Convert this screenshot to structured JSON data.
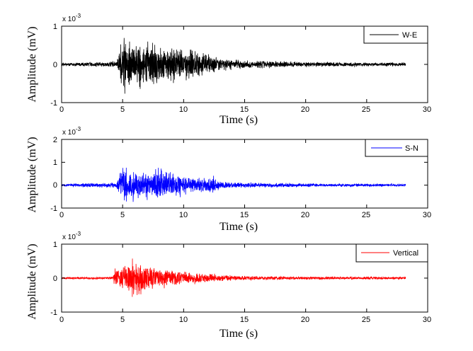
{
  "chart_data": [
    {
      "type": "line",
      "title": "",
      "xlabel": "Time (s)",
      "ylabel": "Amplitude (mV)",
      "y_multiplier": "x 10^-3",
      "xlim": [
        0,
        30
      ],
      "ylim": [
        -1,
        1
      ],
      "xticks": [
        0,
        5,
        10,
        15,
        20,
        25,
        30
      ],
      "yticks": [
        -1,
        0,
        1
      ],
      "legend": {
        "entries": [
          "W-E"
        ],
        "position": "upper right"
      },
      "series": [
        {
          "name": "W-E",
          "color": "#000000",
          "description": "Seismic trace: low noise (~0.05e-3) from 0-4.5 s, strong shaking 4.7-12.5 s with peaks ~+1.0e-3 near 5.2 s and ~-0.9e-3 near 7.2 s, decaying coda to end at ~28 s",
          "envelope": [
            [
              0,
              0.05
            ],
            [
              4.5,
              0.1
            ],
            [
              5,
              0.95
            ],
            [
              6,
              0.7
            ],
            [
              7,
              0.85
            ],
            [
              8,
              0.6
            ],
            [
              9,
              0.6
            ],
            [
              10,
              0.55
            ],
            [
              11,
              0.5
            ],
            [
              12,
              0.4
            ],
            [
              13,
              0.2
            ],
            [
              15,
              0.15
            ],
            [
              20,
              0.08
            ],
            [
              28,
              0.06
            ]
          ]
        }
      ],
      "grid": false
    },
    {
      "type": "line",
      "title": "",
      "xlabel": "Time (s)",
      "ylabel": "Amplitude (mV)",
      "y_multiplier": "x 10^-3",
      "xlim": [
        0,
        30
      ],
      "ylim": [
        -1,
        2
      ],
      "xticks": [
        0,
        5,
        10,
        15,
        20,
        25,
        30
      ],
      "yticks": [
        -1,
        0,
        1,
        2
      ],
      "legend": {
        "entries": [
          "S-N"
        ],
        "position": "upper right"
      },
      "series": [
        {
          "name": "S-N",
          "color": "#0000ff",
          "description": "Seismic trace: low noise from 0-4.5 s, strong shaking 4.6-12.5 s with peak ~+1.1e-3 near 5.2 s, ~-0.9e-3 near 8 s, decaying coda to ~28 s",
          "envelope": [
            [
              0,
              0.07
            ],
            [
              4.5,
              0.15
            ],
            [
              5,
              1.1
            ],
            [
              6,
              0.75
            ],
            [
              7,
              0.7
            ],
            [
              8,
              0.9
            ],
            [
              9,
              0.7
            ],
            [
              10,
              0.6
            ],
            [
              11,
              0.4
            ],
            [
              12.5,
              0.45
            ],
            [
              13,
              0.2
            ],
            [
              15,
              0.15
            ],
            [
              20,
              0.1
            ],
            [
              28,
              0.07
            ]
          ]
        }
      ],
      "grid": false
    },
    {
      "type": "line",
      "title": "",
      "xlabel": "Time (s)",
      "ylabel": "Amplitude (mV)",
      "y_multiplier": "x 10^-3",
      "xlim": [
        0,
        30
      ],
      "ylim": [
        -1,
        1
      ],
      "xticks": [
        0,
        5,
        10,
        15,
        20,
        25,
        30
      ],
      "yticks": [
        -1,
        0,
        1
      ],
      "legend": {
        "entries": [
          "Vertical"
        ],
        "position": "upper right"
      },
      "series": [
        {
          "name": "Vertical",
          "color": "#ff0000",
          "description": "Seismic trace: low noise from 0-4.3 s, sharp onset at ~4.3 s, peak ~+0.7e-3 and ~-0.8e-3 near 6.2 s, decaying coda to ~28 s",
          "envelope": [
            [
              0,
              0.04
            ],
            [
              4.2,
              0.05
            ],
            [
              4.4,
              0.4
            ],
            [
              5.5,
              0.5
            ],
            [
              6.2,
              0.75
            ],
            [
              7,
              0.45
            ],
            [
              8,
              0.35
            ],
            [
              9,
              0.3
            ],
            [
              10,
              0.25
            ],
            [
              12,
              0.15
            ],
            [
              15,
              0.08
            ],
            [
              20,
              0.06
            ],
            [
              28,
              0.05
            ]
          ]
        }
      ],
      "grid": false
    }
  ],
  "labels": {
    "ylabel": "Amplitude (mV)",
    "xlabel": "Time (s)",
    "multiplier_base": "x 10",
    "multiplier_exp": "-3",
    "xticks": [
      "0",
      "5",
      "10",
      "15",
      "20",
      "25",
      "30"
    ],
    "p1_yticks": [
      "1",
      "0",
      "-1"
    ],
    "p2_yticks": [
      "2",
      "1",
      "0",
      "-1"
    ],
    "p3_yticks": [
      "1",
      "0",
      "-1"
    ],
    "legend1": "W-E",
    "legend2": "S-N",
    "legend3": "Vertical"
  },
  "colors": {
    "we": "#000000",
    "sn": "#0000ff",
    "vertical": "#ff0000"
  }
}
